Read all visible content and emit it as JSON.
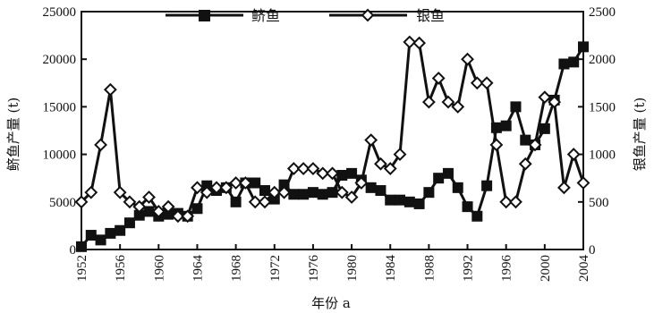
{
  "chart_data": {
    "type": "line",
    "xlabel": "年份 a",
    "ylabel_left": "鲚鱼产量 (t)",
    "ylabel_right": "银鱼产量 (t)",
    "xlim": [
      1952,
      2004
    ],
    "ylim_left": [
      0,
      25000
    ],
    "ylim_right": [
      0,
      2500
    ],
    "x_ticks": [
      1952,
      1956,
      1960,
      1964,
      1968,
      1972,
      1976,
      1980,
      1984,
      1988,
      1992,
      1996,
      2000,
      2004
    ],
    "y_ticks_left": [
      0,
      5000,
      10000,
      15000,
      20000,
      25000
    ],
    "y_ticks_right": [
      0,
      500,
      1000,
      1500,
      2000,
      2500
    ],
    "grid": false,
    "legend_position": "top",
    "series": [
      {
        "name": "鲚鱼",
        "axis": "left",
        "marker": "square",
        "x": [
          1952,
          1953,
          1954,
          1955,
          1956,
          1957,
          1958,
          1959,
          1960,
          1961,
          1962,
          1963,
          1964,
          1965,
          1966,
          1967,
          1968,
          1969,
          1970,
          1971,
          1972,
          1973,
          1974,
          1975,
          1976,
          1977,
          1978,
          1979,
          1980,
          1981,
          1982,
          1983,
          1984,
          1985,
          1986,
          1987,
          1988,
          1989,
          1990,
          1991,
          1992,
          1993,
          1994,
          1995,
          1996,
          1997,
          1998,
          1999,
          2000,
          2001,
          2002,
          2003,
          2004
        ],
        "values": [
          300,
          1500,
          1000,
          1700,
          2000,
          2800,
          3600,
          4000,
          3500,
          3700,
          3800,
          3500,
          4300,
          6700,
          6200,
          6500,
          5000,
          7000,
          7000,
          6200,
          5300,
          6800,
          5800,
          5800,
          6000,
          5800,
          6000,
          7800,
          8000,
          7300,
          6500,
          6200,
          5200,
          5200,
          5000,
          4800,
          6000,
          7500,
          8000,
          6500,
          4500,
          3500,
          6700,
          12800,
          13000,
          15000,
          11500,
          11000,
          12700,
          15700,
          19500,
          19700,
          21300
        ]
      },
      {
        "name": "银鱼",
        "axis": "right",
        "marker": "diamond",
        "x": [
          1952,
          1953,
          1954,
          1955,
          1956,
          1957,
          1958,
          1959,
          1960,
          1961,
          1962,
          1963,
          1964,
          1965,
          1966,
          1967,
          1968,
          1969,
          1970,
          1971,
          1972,
          1973,
          1974,
          1975,
          1976,
          1977,
          1978,
          1979,
          1980,
          1981,
          1982,
          1983,
          1984,
          1985,
          1986,
          1987,
          1988,
          1989,
          1990,
          1991,
          1992,
          1993,
          1994,
          1995,
          1996,
          1997,
          1998,
          1999,
          2000,
          2001,
          2002,
          2003,
          2004
        ],
        "values": [
          500,
          600,
          1100,
          1680,
          600,
          500,
          450,
          550,
          400,
          450,
          350,
          350,
          650,
          600,
          650,
          650,
          700,
          700,
          500,
          500,
          600,
          600,
          850,
          850,
          850,
          800,
          800,
          600,
          550,
          700,
          1150,
          900,
          850,
          1000,
          2180,
          2170,
          1550,
          1800,
          1550,
          1500,
          2000,
          1750,
          1750,
          1100,
          500,
          500,
          900,
          1100,
          1600,
          1550,
          650,
          1000,
          700
        ]
      }
    ]
  }
}
